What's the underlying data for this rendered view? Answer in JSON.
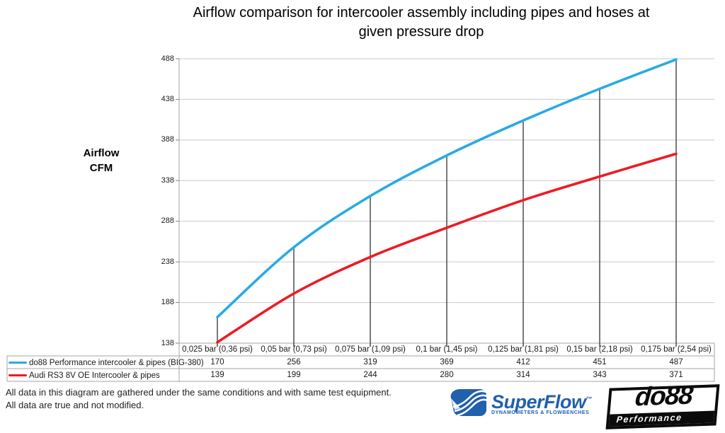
{
  "title": {
    "line1": "Airflow comparison for intercooler assembly including pipes and hoses at",
    "line2": "given pressure drop"
  },
  "y_axis": {
    "line1": "Airflow",
    "line2": "CFM"
  },
  "footer": {
    "line1": "All data in this diagram are gathered under the same conditions and with same test equipment.",
    "line2": "All data are true and not modified."
  },
  "logos": {
    "superflow": {
      "name": "SuperFlow",
      "trademark": "™",
      "tagline": "DYNAMOMETERS & FLOWBENCHES",
      "color": "#2160AC"
    },
    "do88": {
      "name": "do88",
      "tagline": "Performance"
    }
  },
  "chart_data": {
    "type": "line",
    "title": "Airflow comparison for intercooler assembly including pipes and hoses at given pressure drop",
    "xlabel": "",
    "ylabel": "Airflow CFM",
    "categories": [
      "0,025 bar (0,36 psi)",
      "0,05 bar (0,73 psi)",
      "0,075 bar (1,09 psi)",
      "0,1 bar (1,45 psi)",
      "0,125 bar (1,81 psi)",
      "0,15 bar (2,18 psi)",
      "0,175 bar (2,54 psi)"
    ],
    "series": [
      {
        "name": "do88 Performance intercooler & pipes (BIG-380)",
        "color": "#29ABE2",
        "values": [
          170,
          256,
          319,
          369,
          412,
          451,
          487
        ]
      },
      {
        "name": "Audi RS3 8V OE Intercooler & pipes",
        "color": "#EC1C24",
        "values": [
          139,
          199,
          244,
          280,
          314,
          343,
          371
        ]
      }
    ],
    "yticks": [
      138,
      188,
      238,
      288,
      338,
      388,
      438,
      488
    ],
    "ylim": [
      138,
      488
    ],
    "grid": "horizontal",
    "drop_lines": "vertical line at each category from first series point down to x-axis",
    "legend_position": "table-left",
    "colors": {
      "gridline": "#C9C9C9",
      "axis": "#A6A6A6",
      "tick": "#808080",
      "drop_line": "#404040",
      "table_border": "#A6A6A6"
    }
  }
}
